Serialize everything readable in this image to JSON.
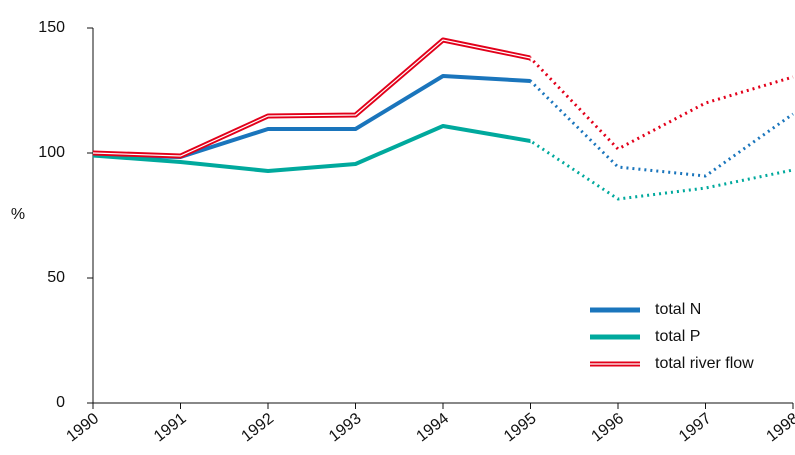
{
  "chart_data": {
    "type": "line",
    "y_label": "%",
    "x": [
      1990,
      1991,
      1992,
      1993,
      1994,
      1995,
      1996,
      1997,
      1998
    ],
    "xlim": [
      1990,
      1998
    ],
    "xticks": [
      1990,
      1991,
      1992,
      1993,
      1994,
      1995,
      1996,
      1997,
      1998
    ],
    "ylim": [
      0,
      150
    ],
    "yticks": [
      0,
      50,
      100,
      150
    ],
    "dotted_from": 1995,
    "legend": "lower right",
    "series": [
      {
        "name": "total N",
        "color": "#1a75bc",
        "values": [
          99,
          98.4,
          109.6,
          109.6,
          130.8,
          128.8,
          94.4,
          90.8,
          115.6
        ]
      },
      {
        "name": "total P",
        "color": "#00a99d",
        "values": [
          99,
          96.4,
          92.8,
          95.6,
          110.8,
          104.8,
          81.6,
          86,
          93.2
        ]
      },
      {
        "name": "total river flow",
        "color": "#e2001a",
        "values": [
          100,
          98.8,
          114.8,
          115.2,
          145.2,
          138,
          101.6,
          120,
          130.4
        ]
      }
    ]
  }
}
